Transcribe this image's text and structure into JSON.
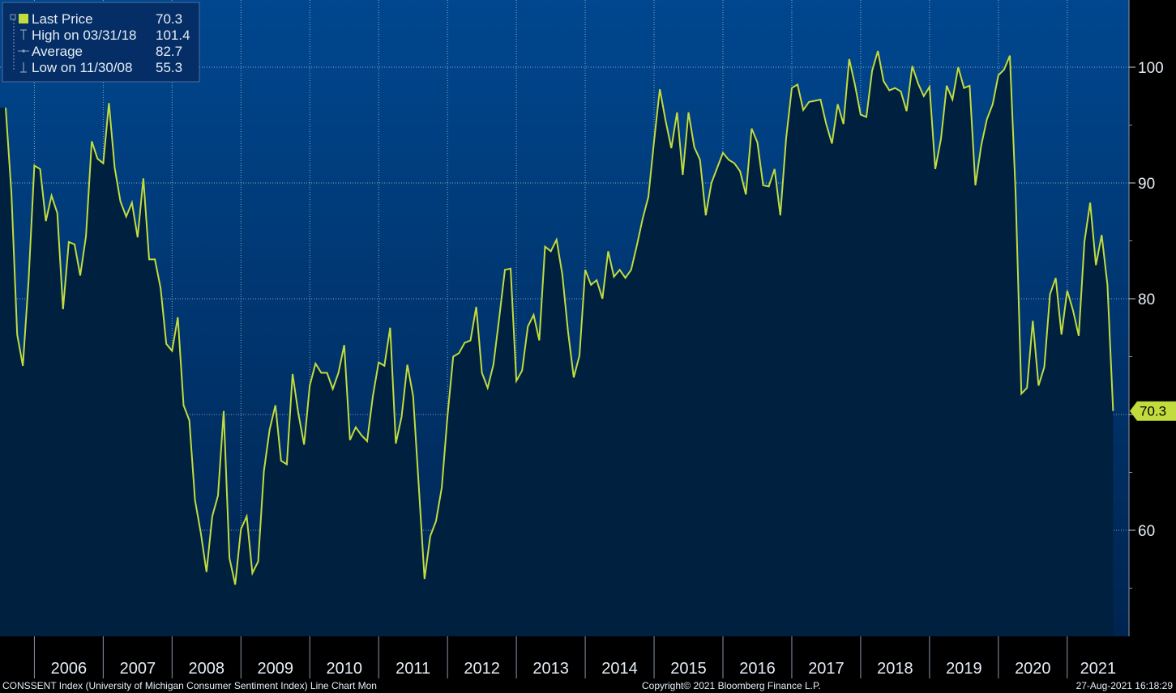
{
  "colors": {
    "line": "#c2dc3e",
    "area": "#00203f",
    "bg_top": "#00478f",
    "bg_bottom": "#002450",
    "text": "#e6edf5"
  },
  "legend": {
    "items": [
      {
        "label": "Last Price",
        "value": "70.3",
        "icon": "filled-square-icon"
      },
      {
        "label": "High on 03/31/18",
        "value": "101.4",
        "icon": "high-marker-icon"
      },
      {
        "label": "Average",
        "value": "82.7",
        "icon": "average-marker-icon"
      },
      {
        "label": "Low on 11/30/08",
        "value": "55.3",
        "icon": "low-marker-icon"
      }
    ]
  },
  "footer": {
    "left": "CONSSENT Index (University of Michigan Consumer Sentiment Index) Line Chart  Mon",
    "center": "Copyright© 2021 Bloomberg Finance L.P.",
    "right": "27-Aug-2021 16:18:29"
  },
  "chart_data": {
    "type": "area",
    "frequency": "monthly",
    "start": "2005-08",
    "ylim": [
      51.5,
      105
    ],
    "yticks": [
      60,
      70,
      80,
      90,
      100
    ],
    "ytick_labels": [
      "60",
      "",
      "80",
      "90",
      "100"
    ],
    "y_axis_position": "right",
    "grid": true,
    "legend_position": "top-left",
    "last_value_label": "70.3",
    "year_labels": [
      "2006",
      "2007",
      "2008",
      "2009",
      "2010",
      "2011",
      "2012",
      "2013",
      "2014",
      "2015",
      "2016",
      "2017",
      "2018",
      "2019",
      "2020",
      "2021"
    ],
    "series": [
      {
        "name": "Last Price",
        "values": [
          96.5,
          89.1,
          76.9,
          74.2,
          81.6,
          91.5,
          91.2,
          86.7,
          88.9,
          87.4,
          79.1,
          84.9,
          84.7,
          82.0,
          85.4,
          93.6,
          92.1,
          91.7,
          96.9,
          91.3,
          88.4,
          87.1,
          88.3,
          85.3,
          90.4,
          83.4,
          83.4,
          80.9,
          76.1,
          75.5,
          78.4,
          70.8,
          69.5,
          62.6,
          59.8,
          56.4,
          61.2,
          63.0,
          70.3,
          57.6,
          55.3,
          60.1,
          61.2,
          56.3,
          57.3,
          65.1,
          68.7,
          70.8,
          66.0,
          65.7,
          73.5,
          70.1,
          67.4,
          72.5,
          74.4,
          73.6,
          73.6,
          72.2,
          73.6,
          76.0,
          67.8,
          68.9,
          68.2,
          67.7,
          71.6,
          74.5,
          74.2,
          77.5,
          67.5,
          69.8,
          74.3,
          71.6,
          63.7,
          55.8,
          59.5,
          60.8,
          63.7,
          69.9,
          75.0,
          75.3,
          76.2,
          76.4,
          79.3,
          73.6,
          72.3,
          74.3,
          78.3,
          82.5,
          82.6,
          72.9,
          73.8,
          77.6,
          78.6,
          76.4,
          84.5,
          84.1,
          85.1,
          82.1,
          77.2,
          73.2,
          75.1,
          82.5,
          81.2,
          81.6,
          80.0,
          84.1,
          81.9,
          82.5,
          81.8,
          82.5,
          84.6,
          86.9,
          88.8,
          93.6,
          98.1,
          95.4,
          93.0,
          96.1,
          90.7,
          96.1,
          93.1,
          92.0,
          87.2,
          90.0,
          91.3,
          92.6,
          92.0,
          91.7,
          91.0,
          89.0,
          94.7,
          93.5,
          89.8,
          89.7,
          91.2,
          87.2,
          93.8,
          98.2,
          98.5,
          96.3,
          97.0,
          97.1,
          97.2,
          95.1,
          93.4,
          96.8,
          95.1,
          100.7,
          98.5,
          95.9,
          95.7,
          99.7,
          101.4,
          98.8,
          98.0,
          98.2,
          97.9,
          96.2,
          100.1,
          98.6,
          97.5,
          98.3,
          91.2,
          93.8,
          98.4,
          97.2,
          100.0,
          98.2,
          98.4,
          89.8,
          93.2,
          95.5,
          96.8,
          99.3,
          99.8,
          101.0,
          89.1,
          71.8,
          72.3,
          78.1,
          72.5,
          74.1,
          80.4,
          81.8,
          76.9,
          80.7,
          79.0,
          76.8,
          84.9,
          88.3,
          82.9,
          85.5,
          81.2,
          70.3
        ]
      }
    ]
  }
}
